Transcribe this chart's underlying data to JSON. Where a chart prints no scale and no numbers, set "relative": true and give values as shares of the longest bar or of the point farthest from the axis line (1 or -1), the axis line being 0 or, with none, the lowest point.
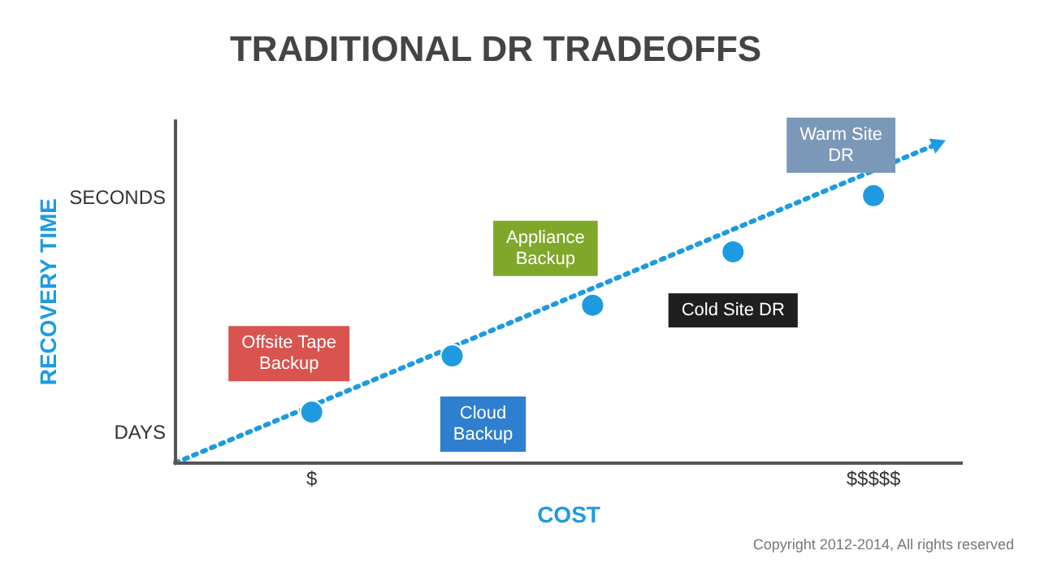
{
  "chart_data": {
    "type": "scatter",
    "title": "TRADITIONAL DR TRADEOFFS",
    "xlabel": "COST",
    "ylabel": "RECOVERY TIME",
    "categories": [
      "$",
      null,
      null,
      null,
      "$$$$$"
    ],
    "relative": true,
    "series": [
      {
        "color": "#1e9be0",
        "values": [
          0.19,
          0.4,
          0.59,
          0.79,
          1
        ]
      }
    ],
    "marker": "circle",
    "legend": false,
    "annotations": [
      "Offsite Tape Backup",
      "Cloud Backup",
      "Appliance Backup",
      "Cold Site DR",
      "Warm Site DR",
      "DAYS",
      "SECONDS",
      "Copyright 2012-2014, All rights reserved"
    ]
  }
}
